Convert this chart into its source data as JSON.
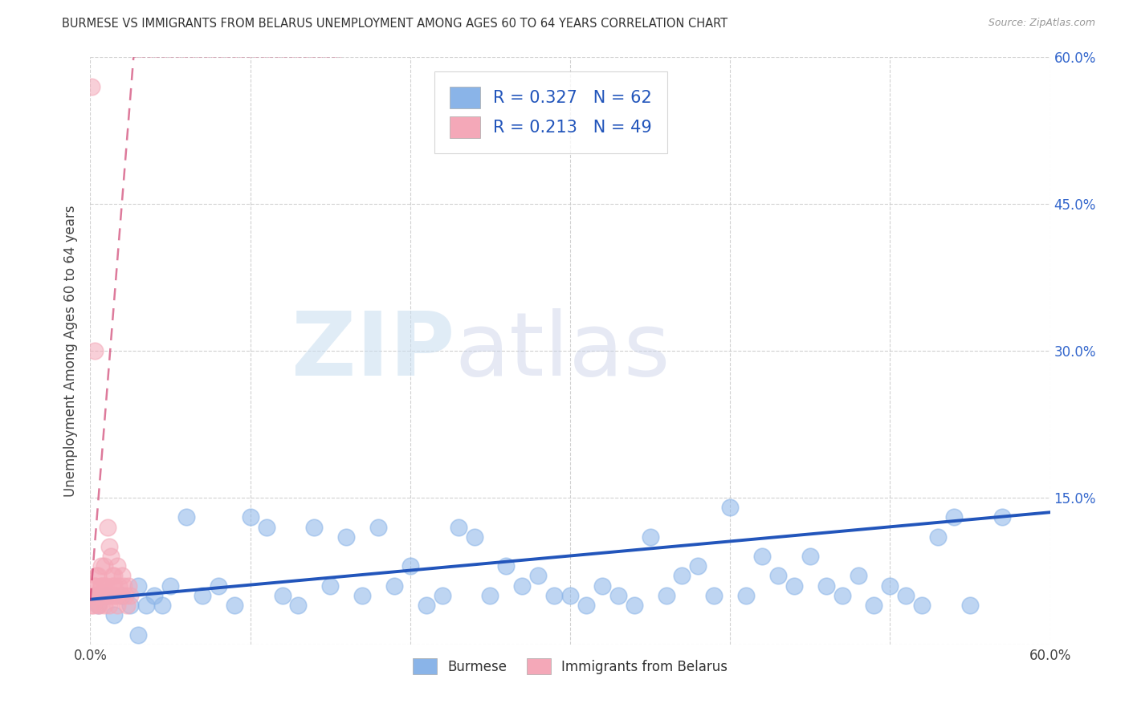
{
  "title": "BURMESE VS IMMIGRANTS FROM BELARUS UNEMPLOYMENT AMONG AGES 60 TO 64 YEARS CORRELATION CHART",
  "source": "Source: ZipAtlas.com",
  "ylabel": "Unemployment Among Ages 60 to 64 years",
  "xlim": [
    0,
    0.6
  ],
  "ylim": [
    0,
    0.6
  ],
  "xtick_positions": [
    0.0,
    0.1,
    0.2,
    0.3,
    0.4,
    0.5,
    0.6
  ],
  "xtick_labels": [
    "0.0%",
    "",
    "",
    "",
    "",
    "",
    "60.0%"
  ],
  "ytick_positions": [
    0.0,
    0.15,
    0.3,
    0.45,
    0.6
  ],
  "ytick_labels_right": [
    "",
    "15.0%",
    "30.0%",
    "45.0%",
    "60.0%"
  ],
  "legend_blue_R": "0.327",
  "legend_blue_N": "62",
  "legend_pink_R": "0.213",
  "legend_pink_N": "49",
  "legend_blue_label": "Burmese",
  "legend_pink_label": "Immigrants from Belarus",
  "blue_color": "#8ab4e8",
  "pink_color": "#f4a8b8",
  "trend_blue_color": "#2255bb",
  "trend_pink_color": "#cc3366",
  "blue_scatter_x": [
    0.005,
    0.01,
    0.015,
    0.02,
    0.025,
    0.03,
    0.035,
    0.04,
    0.045,
    0.05,
    0.06,
    0.07,
    0.08,
    0.09,
    0.1,
    0.11,
    0.12,
    0.13,
    0.14,
    0.15,
    0.16,
    0.17,
    0.18,
    0.19,
    0.2,
    0.21,
    0.22,
    0.23,
    0.24,
    0.25,
    0.26,
    0.27,
    0.28,
    0.29,
    0.3,
    0.31,
    0.32,
    0.33,
    0.34,
    0.35,
    0.36,
    0.37,
    0.38,
    0.39,
    0.4,
    0.41,
    0.42,
    0.43,
    0.44,
    0.45,
    0.46,
    0.47,
    0.48,
    0.49,
    0.5,
    0.51,
    0.52,
    0.53,
    0.54,
    0.55,
    0.57,
    0.03
  ],
  "blue_scatter_y": [
    0.04,
    0.05,
    0.03,
    0.05,
    0.04,
    0.06,
    0.04,
    0.05,
    0.04,
    0.06,
    0.13,
    0.05,
    0.06,
    0.04,
    0.13,
    0.12,
    0.05,
    0.04,
    0.12,
    0.06,
    0.11,
    0.05,
    0.12,
    0.06,
    0.08,
    0.04,
    0.05,
    0.12,
    0.11,
    0.05,
    0.08,
    0.06,
    0.07,
    0.05,
    0.05,
    0.04,
    0.06,
    0.05,
    0.04,
    0.11,
    0.05,
    0.07,
    0.08,
    0.05,
    0.14,
    0.05,
    0.09,
    0.07,
    0.06,
    0.09,
    0.06,
    0.05,
    0.07,
    0.04,
    0.06,
    0.05,
    0.04,
    0.11,
    0.13,
    0.04,
    0.13,
    0.01
  ],
  "pink_scatter_x": [
    0.001,
    0.002,
    0.003,
    0.004,
    0.005,
    0.005,
    0.006,
    0.007,
    0.008,
    0.009,
    0.01,
    0.011,
    0.012,
    0.013,
    0.014,
    0.015,
    0.016,
    0.017,
    0.018,
    0.019,
    0.02,
    0.021,
    0.022,
    0.023,
    0.024,
    0.025,
    0.001,
    0.002,
    0.003,
    0.004,
    0.005,
    0.006,
    0.007,
    0.008,
    0.009,
    0.01,
    0.011,
    0.012,
    0.013,
    0.014,
    0.015,
    0.016,
    0.017,
    0.003,
    0.005,
    0.007,
    0.009,
    0.002,
    0.004
  ],
  "pink_scatter_y": [
    0.04,
    0.05,
    0.06,
    0.05,
    0.04,
    0.07,
    0.05,
    0.06,
    0.05,
    0.08,
    0.05,
    0.12,
    0.1,
    0.09,
    0.06,
    0.07,
    0.05,
    0.08,
    0.06,
    0.05,
    0.07,
    0.06,
    0.05,
    0.04,
    0.06,
    0.05,
    0.57,
    0.05,
    0.06,
    0.07,
    0.05,
    0.04,
    0.06,
    0.05,
    0.04,
    0.06,
    0.05,
    0.04,
    0.05,
    0.07,
    0.06,
    0.05,
    0.04,
    0.3,
    0.05,
    0.08,
    0.06,
    0.04,
    0.05
  ],
  "pink_trendline_x0": 0.0,
  "pink_trendline_y0": 0.045,
  "pink_trendline_x1": 0.027,
  "pink_trendline_y1": 0.6,
  "blue_trendline_x0": 0.0,
  "blue_trendline_y0": 0.046,
  "blue_trendline_x1": 0.6,
  "blue_trendline_y1": 0.135
}
